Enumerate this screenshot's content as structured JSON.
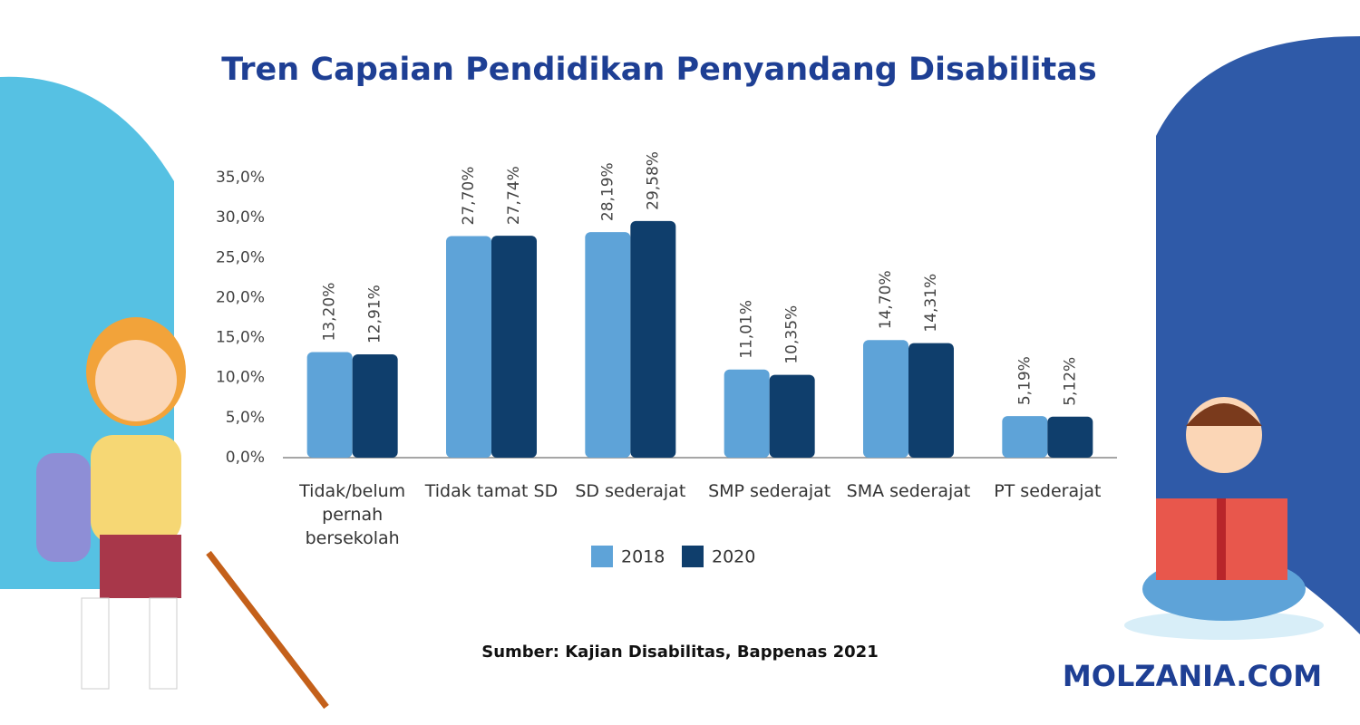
{
  "chart_data": {
    "type": "bar",
    "title": "Tren Capaian Pendidikan Penyandang Disabilitas",
    "categories": [
      "Tidak/belum pernah bersekolah",
      "Tidak tamat SD",
      "SD sederajat",
      "SMP sederajat",
      "SMA sederajat",
      "PT sederajat"
    ],
    "series": [
      {
        "name": "2018",
        "color": "#5ea3d8",
        "values": [
          13.2,
          27.7,
          28.19,
          11.01,
          14.7,
          5.19
        ],
        "value_labels": [
          "13,20%",
          "27,70%",
          "28,19%",
          "11,01%",
          "14,70%",
          "5,19%"
        ]
      },
      {
        "name": "2020",
        "color": "#0f3e6c",
        "values": [
          12.91,
          27.74,
          29.58,
          10.35,
          14.31,
          5.12
        ],
        "value_labels": [
          "12,91%",
          "27,74%",
          "29,58%",
          "10,35%",
          "14,31%",
          "5,12%"
        ]
      }
    ],
    "ylim": [
      0,
      35
    ],
    "yticks": [
      {
        "value": 0,
        "label": "0,0%"
      },
      {
        "value": 5,
        "label": "5,0%"
      },
      {
        "value": 10,
        "label": "10,0%"
      },
      {
        "value": 15,
        "label": "15,0%"
      },
      {
        "value": 20,
        "label": "20,0%"
      },
      {
        "value": 25,
        "label": "25,0%"
      },
      {
        "value": 30,
        "label": "30,0%"
      },
      {
        "value": 35,
        "label": "35,0%"
      }
    ],
    "legend": "bottom",
    "source": "Sumber: Kajian Disabilitas, Bappenas 2021",
    "brand": "MOLZANIA.COM"
  }
}
